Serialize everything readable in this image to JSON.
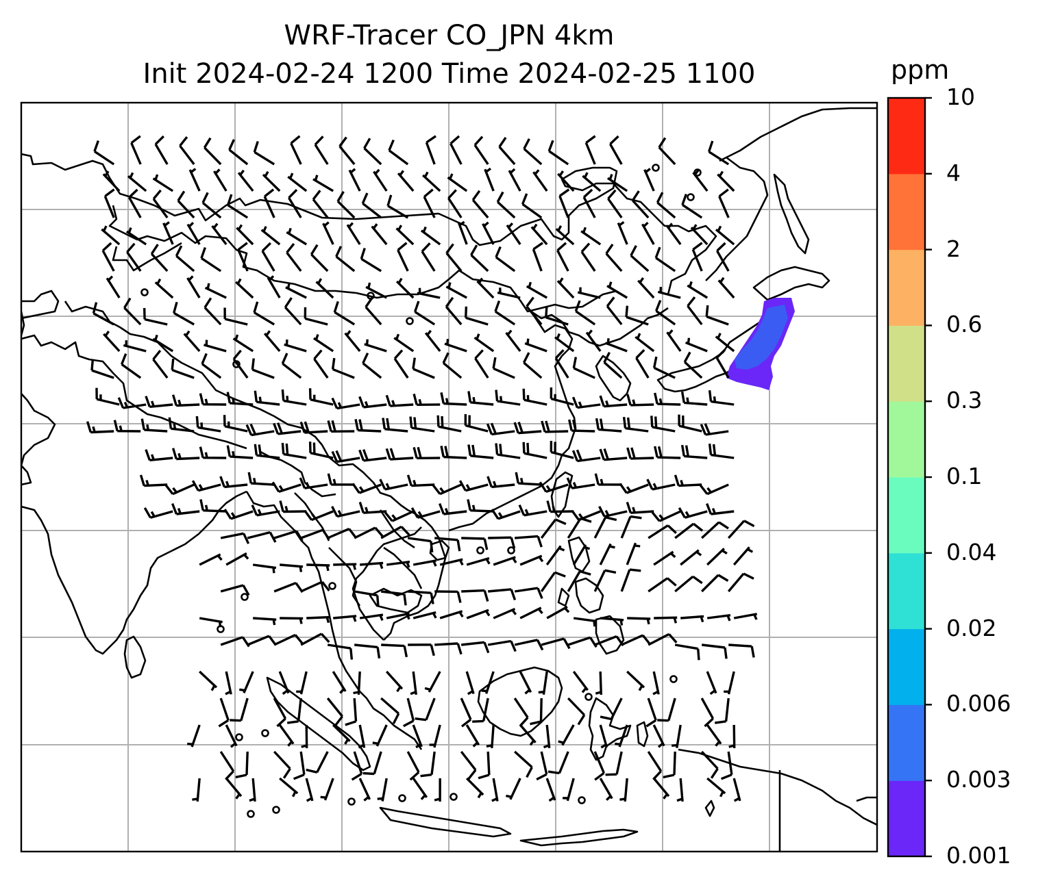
{
  "title": {
    "line1": "WRF-Tracer CO_JPN 4km",
    "line2": "Init 2024-02-24 1200 Time 2024-02-25 1100"
  },
  "colorbar": {
    "units": "ppm",
    "ticks": [
      "0.001",
      "0.003",
      "0.006",
      "0.02",
      "0.04",
      "0.1",
      "0.3",
      "0.6",
      "2",
      "4",
      "10"
    ],
    "colors": [
      "#6a27f8",
      "#3575f5",
      "#01b0ec",
      "#2fe0d4",
      "#6afcbf",
      "#a0f89b",
      "#d0e088",
      "#fcb163",
      "#ff7238",
      "#ff2a14"
    ]
  },
  "map": {
    "projection": "lat-lon grid",
    "gridlines": true,
    "wind_barbs": true,
    "tracer_plume_color": "#3b5cf2",
    "tracer_plume_edge_color": "#6a27f8"
  }
}
